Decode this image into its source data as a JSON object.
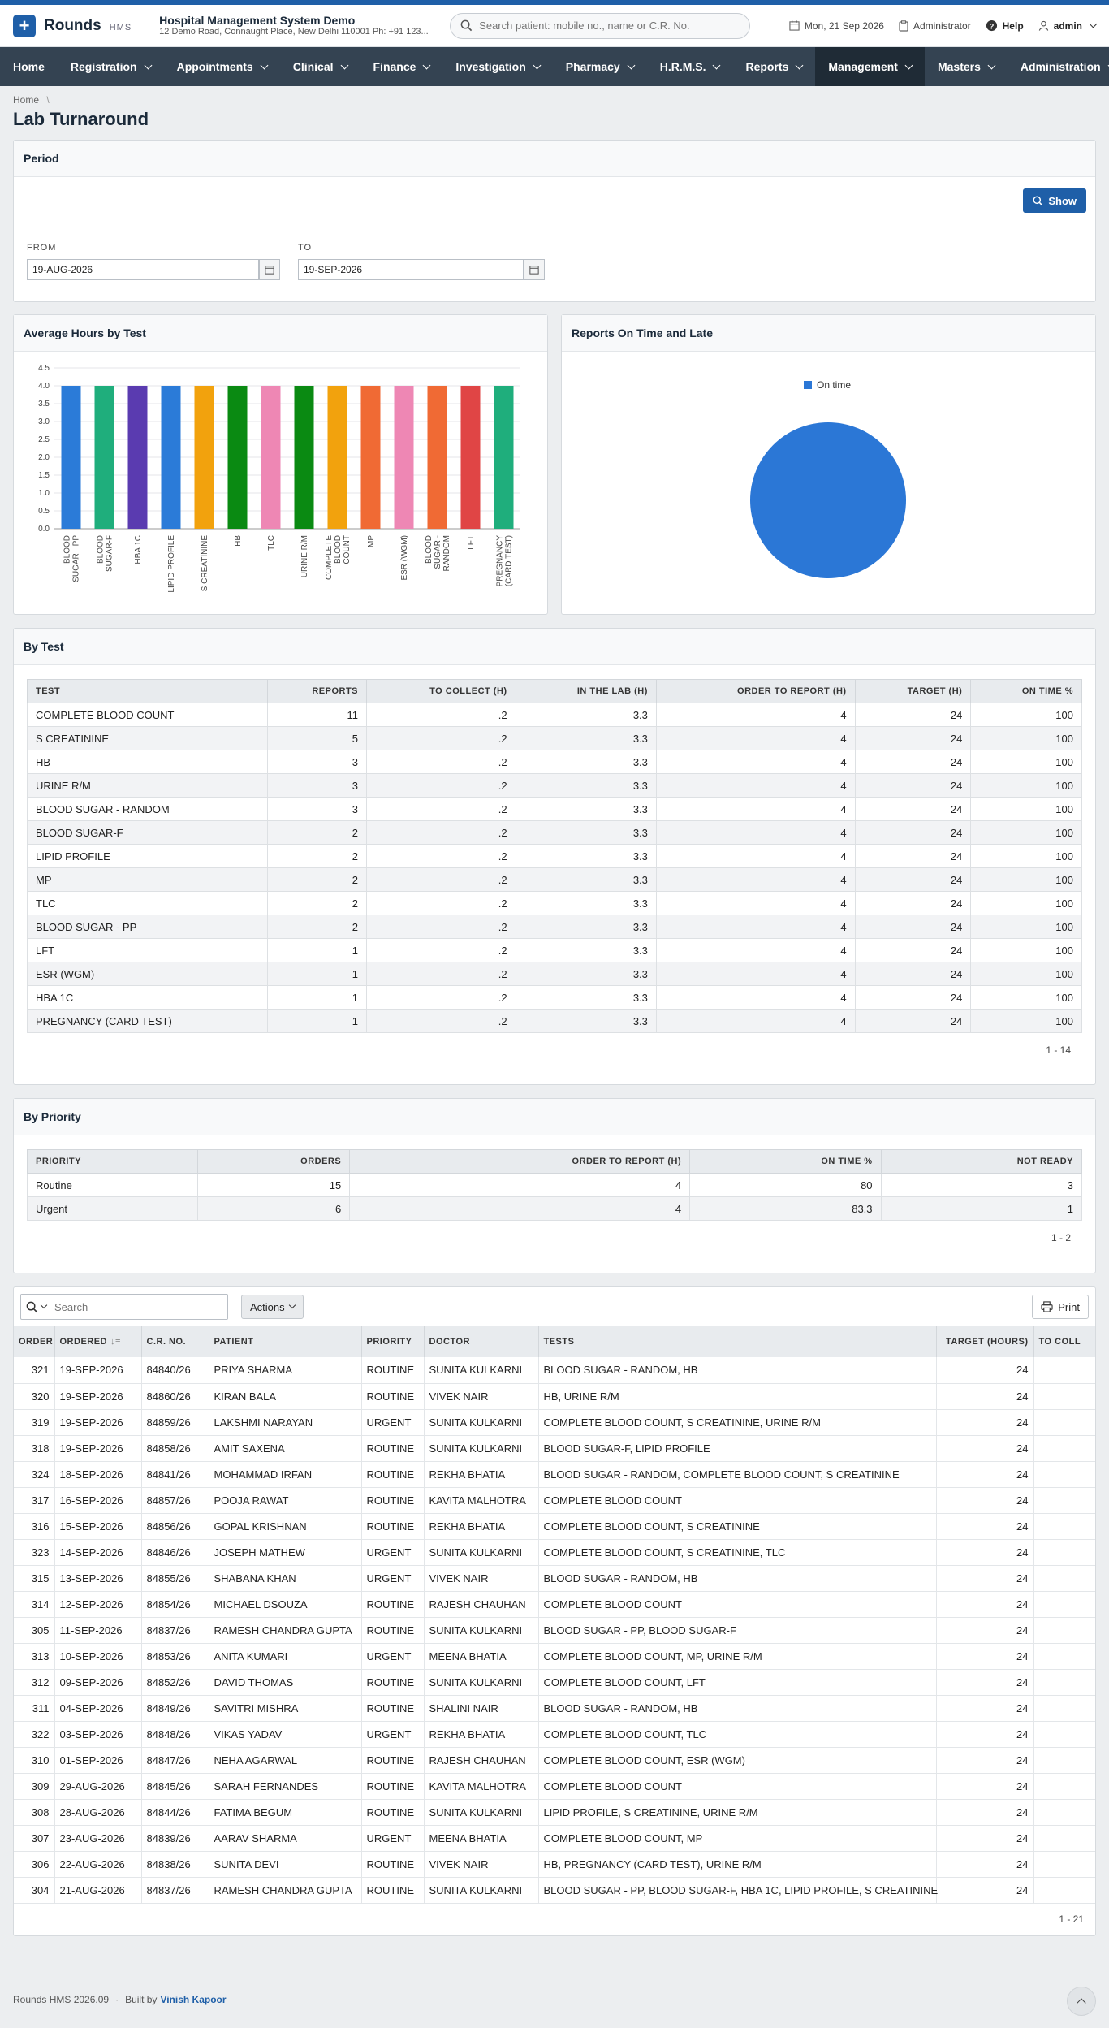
{
  "app": {
    "name": "Rounds",
    "suffix": "HMS",
    "org_name": "Hospital Management System Demo",
    "org_address": "12 Demo Road, Connaught Place, New Delhi 110001 Ph: +91 123..."
  },
  "search": {
    "placeholder": "Search patient: mobile no., name or C.R. No."
  },
  "header": {
    "date": "Mon, 21 Sep 2026",
    "role": "Administrator",
    "help": "Help",
    "user": "admin"
  },
  "nav": [
    {
      "label": "Home",
      "chevron": false
    },
    {
      "label": "Registration",
      "chevron": true
    },
    {
      "label": "Appointments",
      "chevron": true
    },
    {
      "label": "Clinical",
      "chevron": true
    },
    {
      "label": "Finance",
      "chevron": true
    },
    {
      "label": "Investigation",
      "chevron": true
    },
    {
      "label": "Pharmacy",
      "chevron": true
    },
    {
      "label": "H.R.M.S.",
      "chevron": true
    },
    {
      "label": "Reports",
      "chevron": true
    },
    {
      "label": "Management",
      "chevron": true,
      "active": true
    },
    {
      "label": "Masters",
      "chevron": true
    },
    {
      "label": "Administration",
      "chevron": true
    }
  ],
  "breadcrumb": {
    "home": "Home"
  },
  "page_title": "Lab Turnaround",
  "period": {
    "title": "Period",
    "show_label": "Show",
    "from_label": "FROM",
    "to_label": "TO",
    "from_value": "19-AUG-2026",
    "to_value": "19-SEP-2026"
  },
  "avg_chart": {
    "title": "Average Hours by Test"
  },
  "pie_chart": {
    "title": "Reports On Time and Late"
  },
  "chart_data": [
    {
      "type": "bar",
      "title": "Average Hours by Test",
      "xlabel": "",
      "ylabel": "",
      "ylim": [
        0,
        4.5
      ],
      "yticks": [
        "0.0",
        "0.5",
        "1.0",
        "1.5",
        "2.0",
        "2.5",
        "3.0",
        "3.5",
        "4.0",
        "4.5"
      ],
      "categories": [
        [
          "BLOOD",
          "SUGAR - PP"
        ],
        [
          "BLOOD",
          "SUGAR-F"
        ],
        [
          "HBA 1C"
        ],
        [
          "LIPID PROFILE"
        ],
        [
          "S CREATININE"
        ],
        [
          "HB"
        ],
        [
          "TLC"
        ],
        [
          "URINE R/M"
        ],
        [
          "COMPLETE",
          "BLOOD",
          "COUNT"
        ],
        [
          "MP"
        ],
        [
          "ESR (WGM)"
        ],
        [
          "BLOOD",
          "SUGAR -",
          "RANDOM"
        ],
        [
          "LFT"
        ],
        [
          "PREGNANCY",
          "(CARD TEST)"
        ]
      ],
      "values": [
        4,
        4,
        4,
        4,
        4,
        4,
        4,
        4,
        4,
        4,
        4,
        4,
        4,
        4
      ],
      "colors": [
        "#2b7bd8",
        "#1fae7c",
        "#5a3bb0",
        "#2b7bd8",
        "#f2a20d",
        "#0a8a12",
        "#ee87b4",
        "#0a8a12",
        "#f2a20d",
        "#f06a34",
        "#ee87b4",
        "#f06a34",
        "#e04545",
        "#1fae7c"
      ],
      "grid": true
    },
    {
      "type": "pie",
      "title": "Reports On Time and Late",
      "legend": "top",
      "slices": [
        {
          "name": "On time",
          "value": 100,
          "color": "#2b77d6"
        }
      ]
    }
  ],
  "by_test": {
    "title": "By Test",
    "columns": [
      "TEST",
      "REPORTS",
      "TO COLLECT (H)",
      "IN THE LAB (H)",
      "ORDER TO REPORT (H)",
      "TARGET (H)",
      "ON TIME %"
    ],
    "rows": [
      [
        "COMPLETE BLOOD COUNT",
        "11",
        ".2",
        "3.3",
        "4",
        "24",
        "100"
      ],
      [
        "S CREATININE",
        "5",
        ".2",
        "3.3",
        "4",
        "24",
        "100"
      ],
      [
        "HB",
        "3",
        ".2",
        "3.3",
        "4",
        "24",
        "100"
      ],
      [
        "URINE R/M",
        "3",
        ".2",
        "3.3",
        "4",
        "24",
        "100"
      ],
      [
        "BLOOD SUGAR - RANDOM",
        "3",
        ".2",
        "3.3",
        "4",
        "24",
        "100"
      ],
      [
        "BLOOD SUGAR-F",
        "2",
        ".2",
        "3.3",
        "4",
        "24",
        "100"
      ],
      [
        "LIPID PROFILE",
        "2",
        ".2",
        "3.3",
        "4",
        "24",
        "100"
      ],
      [
        "MP",
        "2",
        ".2",
        "3.3",
        "4",
        "24",
        "100"
      ],
      [
        "TLC",
        "2",
        ".2",
        "3.3",
        "4",
        "24",
        "100"
      ],
      [
        "BLOOD SUGAR - PP",
        "2",
        ".2",
        "3.3",
        "4",
        "24",
        "100"
      ],
      [
        "LFT",
        "1",
        ".2",
        "3.3",
        "4",
        "24",
        "100"
      ],
      [
        "ESR (WGM)",
        "1",
        ".2",
        "3.3",
        "4",
        "24",
        "100"
      ],
      [
        "HBA 1C",
        "1",
        ".2",
        "3.3",
        "4",
        "24",
        "100"
      ],
      [
        "PREGNANCY (CARD TEST)",
        "1",
        ".2",
        "3.3",
        "4",
        "24",
        "100"
      ]
    ],
    "pager": "1 - 14"
  },
  "by_priority": {
    "title": "By Priority",
    "columns": [
      "PRIORITY",
      "ORDERS",
      "ORDER TO REPORT (H)",
      "ON TIME %",
      "NOT READY"
    ],
    "rows": [
      [
        "Routine",
        "15",
        "4",
        "80",
        "3"
      ],
      [
        "Urgent",
        "6",
        "4",
        "83.3",
        "1"
      ]
    ],
    "pager": "1 - 2"
  },
  "orders": {
    "search_placeholder": "Search",
    "actions_label": "Actions",
    "print_label": "Print",
    "columns": [
      "ORDER",
      "ORDERED",
      "C.R. NO.",
      "PATIENT",
      "PRIORITY",
      "DOCTOR",
      "TESTS",
      "TARGET (HOURS)",
      "TO COLL"
    ],
    "rows": [
      [
        "321",
        "19-SEP-2026",
        "84840/26",
        "PRIYA SHARMA",
        "ROUTINE",
        "SUNITA KULKARNI",
        "BLOOD SUGAR - RANDOM, HB",
        "24"
      ],
      [
        "320",
        "19-SEP-2026",
        "84860/26",
        "KIRAN BALA",
        "ROUTINE",
        "VIVEK NAIR",
        "HB, URINE R/M",
        "24"
      ],
      [
        "319",
        "19-SEP-2026",
        "84859/26",
        "LAKSHMI NARAYAN",
        "URGENT",
        "SUNITA KULKARNI",
        "COMPLETE BLOOD COUNT, S CREATININE, URINE R/M",
        "24"
      ],
      [
        "318",
        "19-SEP-2026",
        "84858/26",
        "AMIT SAXENA",
        "ROUTINE",
        "SUNITA KULKARNI",
        "BLOOD SUGAR-F, LIPID PROFILE",
        "24"
      ],
      [
        "324",
        "18-SEP-2026",
        "84841/26",
        "MOHAMMAD IRFAN",
        "ROUTINE",
        "REKHA BHATIA",
        "BLOOD SUGAR - RANDOM, COMPLETE BLOOD COUNT, S CREATININE",
        "24"
      ],
      [
        "317",
        "16-SEP-2026",
        "84857/26",
        "POOJA RAWAT",
        "ROUTINE",
        "KAVITA MALHOTRA",
        "COMPLETE BLOOD COUNT",
        "24"
      ],
      [
        "316",
        "15-SEP-2026",
        "84856/26",
        "GOPAL KRISHNAN",
        "ROUTINE",
        "REKHA BHATIA",
        "COMPLETE BLOOD COUNT, S CREATININE",
        "24"
      ],
      [
        "323",
        "14-SEP-2026",
        "84846/26",
        "JOSEPH MATHEW",
        "URGENT",
        "SUNITA KULKARNI",
        "COMPLETE BLOOD COUNT, S CREATININE, TLC",
        "24"
      ],
      [
        "315",
        "13-SEP-2026",
        "84855/26",
        "SHABANA KHAN",
        "URGENT",
        "VIVEK NAIR",
        "BLOOD SUGAR - RANDOM, HB",
        "24"
      ],
      [
        "314",
        "12-SEP-2026",
        "84854/26",
        "MICHAEL DSOUZA",
        "ROUTINE",
        "RAJESH CHAUHAN",
        "COMPLETE BLOOD COUNT",
        "24"
      ],
      [
        "305",
        "11-SEP-2026",
        "84837/26",
        "RAMESH CHANDRA GUPTA",
        "ROUTINE",
        "SUNITA KULKARNI",
        "BLOOD SUGAR - PP, BLOOD SUGAR-F",
        "24"
      ],
      [
        "313",
        "10-SEP-2026",
        "84853/26",
        "ANITA KUMARI",
        "URGENT",
        "MEENA BHATIA",
        "COMPLETE BLOOD COUNT, MP, URINE R/M",
        "24"
      ],
      [
        "312",
        "09-SEP-2026",
        "84852/26",
        "DAVID THOMAS",
        "ROUTINE",
        "SUNITA KULKARNI",
        "COMPLETE BLOOD COUNT, LFT",
        "24"
      ],
      [
        "311",
        "04-SEP-2026",
        "84849/26",
        "SAVITRI MISHRA",
        "ROUTINE",
        "SHALINI NAIR",
        "BLOOD SUGAR - RANDOM, HB",
        "24"
      ],
      [
        "322",
        "03-SEP-2026",
        "84848/26",
        "VIKAS YADAV",
        "URGENT",
        "REKHA BHATIA",
        "COMPLETE BLOOD COUNT, TLC",
        "24"
      ],
      [
        "310",
        "01-SEP-2026",
        "84847/26",
        "NEHA AGARWAL",
        "ROUTINE",
        "RAJESH CHAUHAN",
        "COMPLETE BLOOD COUNT, ESR (WGM)",
        "24"
      ],
      [
        "309",
        "29-AUG-2026",
        "84845/26",
        "SARAH FERNANDES",
        "ROUTINE",
        "KAVITA MALHOTRA",
        "COMPLETE BLOOD COUNT",
        "24"
      ],
      [
        "308",
        "28-AUG-2026",
        "84844/26",
        "FATIMA BEGUM",
        "ROUTINE",
        "SUNITA KULKARNI",
        "LIPID PROFILE, S CREATININE, URINE R/M",
        "24"
      ],
      [
        "307",
        "23-AUG-2026",
        "84839/26",
        "AARAV SHARMA",
        "URGENT",
        "MEENA BHATIA",
        "COMPLETE BLOOD COUNT, MP",
        "24"
      ],
      [
        "306",
        "22-AUG-2026",
        "84838/26",
        "SUNITA DEVI",
        "ROUTINE",
        "VIVEK NAIR",
        "HB, PREGNANCY (CARD TEST), URINE R/M",
        "24"
      ],
      [
        "304",
        "21-AUG-2026",
        "84837/26",
        "RAMESH CHANDRA GUPTA",
        "ROUTINE",
        "SUNITA KULKARNI",
        "BLOOD SUGAR - PP, BLOOD SUGAR-F, HBA 1C, LIPID PROFILE, S CREATININE",
        "24"
      ]
    ],
    "pager": "1 - 21"
  },
  "footer": {
    "version": "Rounds HMS 2026.09",
    "built_by": "Built by",
    "author": "Vinish Kapoor"
  },
  "icons": {
    "logo": "plus-icon",
    "search": "search-icon",
    "calendar": "calendar-icon",
    "clipboard": "clipboard-icon",
    "help": "help-icon",
    "user": "user-icon",
    "print": "printer-icon",
    "sort": "sort-icon",
    "scroll_top": "chevron-up-icon"
  },
  "colors": {
    "accent": "#1f5fa8",
    "nav_bg": "#344352",
    "nav_active": "#1f2b36"
  }
}
